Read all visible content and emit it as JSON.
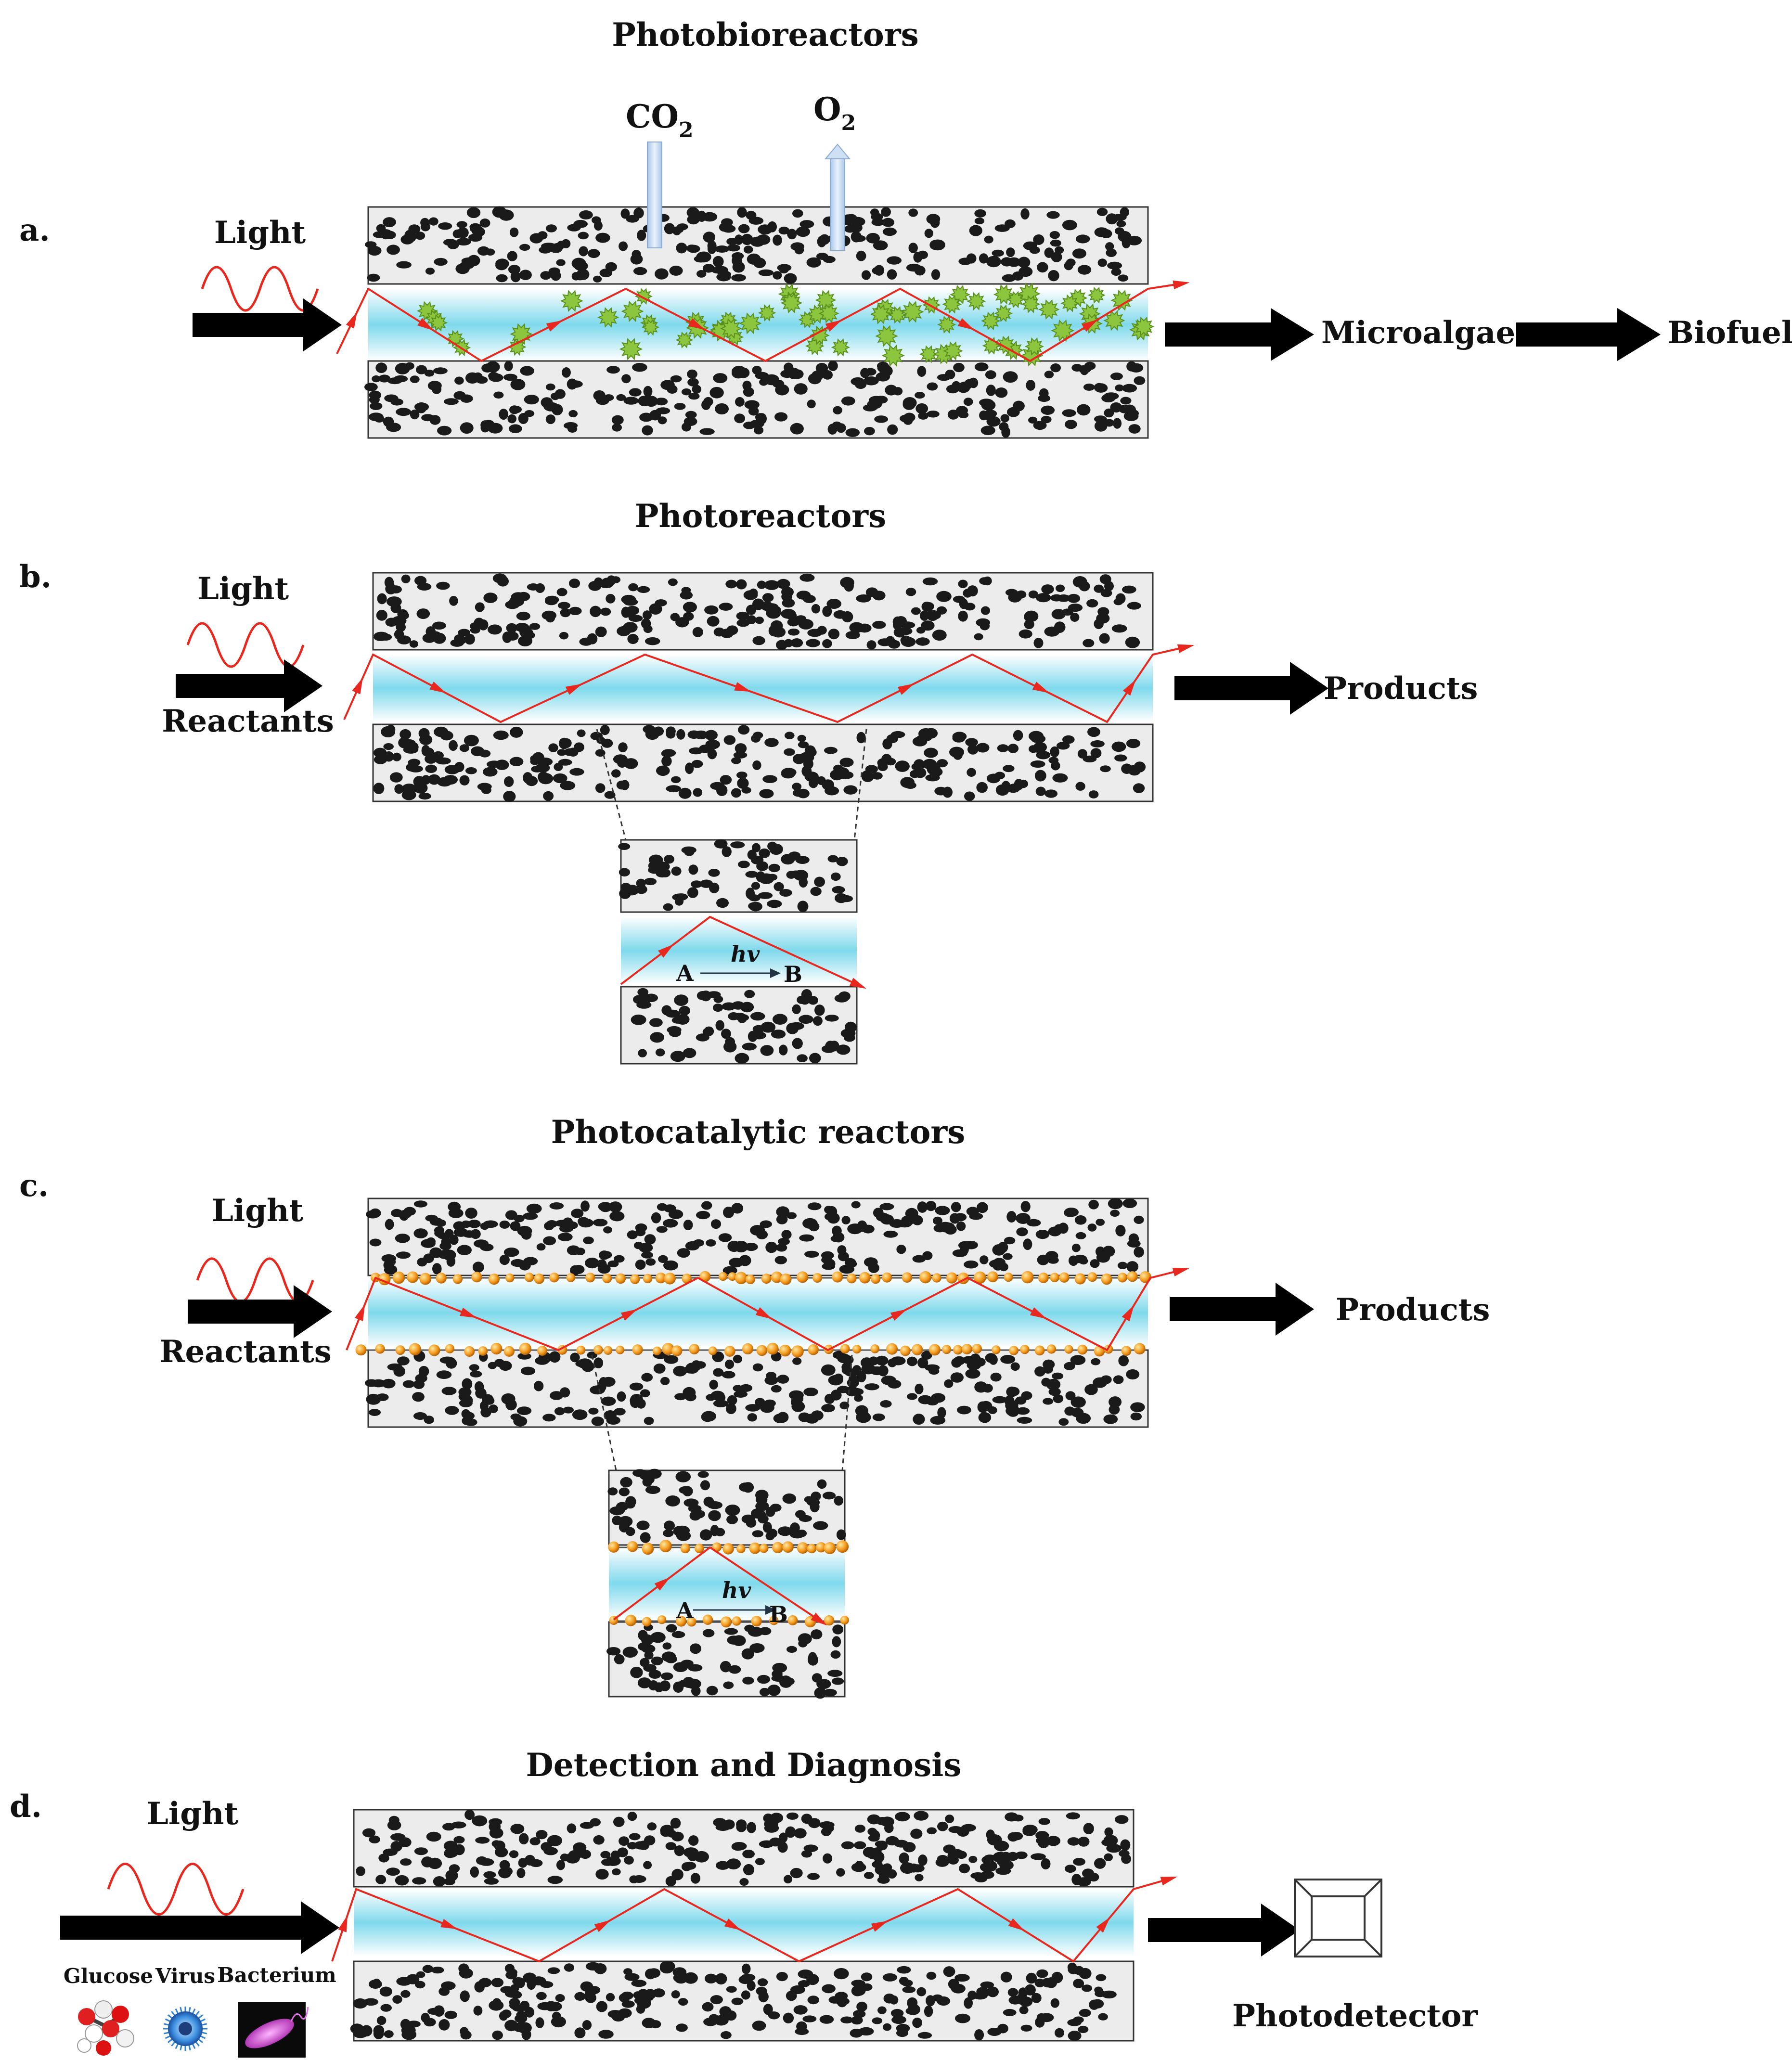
{
  "panels": {
    "a": {
      "letter": "a.",
      "title": "Photobioreactors",
      "light": "Light",
      "co2": "CO",
      "co2_sub": "2",
      "o2": "O",
      "o2_sub": "2",
      "out1": "Microalgae",
      "out2": "Biofuel"
    },
    "b": {
      "letter": "b.",
      "title": "Photoreactors",
      "light": "Light",
      "input": "Reactants",
      "output": "Products",
      "inset_hv": "hv",
      "inset_a": "A",
      "inset_b": "B"
    },
    "c": {
      "letter": "c.",
      "title": "Photocatalytic reactors",
      "light": "Light",
      "input": "Reactants",
      "output": "Products",
      "inset_hv": "hv",
      "inset_a": "A",
      "inset_b": "B"
    },
    "d": {
      "letter": "d.",
      "title": "Detection and Diagnosis",
      "light": "Light",
      "glucose": "Glucose",
      "virus": "Virus",
      "bacterium": "Bacterium",
      "output": "Photodetector"
    }
  },
  "colors": {
    "channel_core": "#7fd9ec",
    "light_ray": "#e8281e",
    "algae": "#8cc63f",
    "catalyst": "#f39a1d",
    "slab_fill": "#ececec",
    "particle": "#1a1a1a"
  }
}
